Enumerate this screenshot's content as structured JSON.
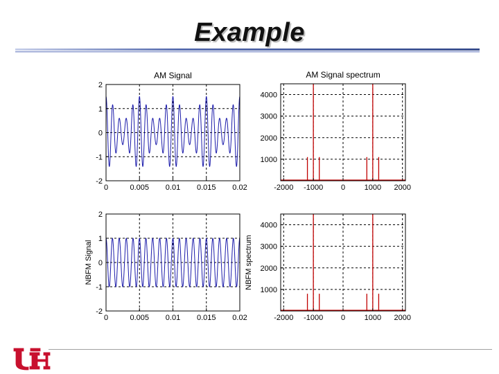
{
  "slide": {
    "title": "Example",
    "colors": {
      "title_rule_dark": "#3a4f8e",
      "title_rule_light": "#a9b6da",
      "logo_red": "#c8102e"
    },
    "logo_icon": "uh-logo-icon"
  },
  "chart_data": [
    {
      "type": "line",
      "title": "AM Signal",
      "xlabel": "",
      "ylabel": "",
      "xlim": [
        0,
        0.02
      ],
      "ylim": [
        -2,
        2
      ],
      "xticks": [
        "0",
        "0.005",
        "0.01",
        "0.015",
        "0.02"
      ],
      "yticks": [
        "-2",
        "-1",
        "0",
        "1",
        "2"
      ],
      "grid": true,
      "color": "#1a1aaa",
      "series": [
        {
          "function": "am",
          "carrier_hz": 1000,
          "modulation_hz": 200,
          "modulation_index": 0.5
        }
      ]
    },
    {
      "type": "bar",
      "title": "AM Signal spectrum",
      "xlabel": "",
      "ylabel": "",
      "xlim": [
        -2100,
        2100
      ],
      "ylim": [
        0,
        4500
      ],
      "xticks": [
        "-2000",
        "-1000",
        "0",
        "1000",
        "2000"
      ],
      "yticks": [
        "1000",
        "2000",
        "3000",
        "4000"
      ],
      "grid": true,
      "color": "#c00000",
      "series": [
        {
          "x": [
            -1200,
            -1000,
            -800,
            800,
            1000,
            1200
          ],
          "y": [
            1100,
            4500,
            1100,
            1100,
            4500,
            1100
          ]
        }
      ]
    },
    {
      "type": "line",
      "title": "",
      "xlabel": "",
      "ylabel": "NBFM Signal",
      "xlim": [
        0,
        0.02
      ],
      "ylim": [
        -2,
        2
      ],
      "xticks": [
        "0",
        "0.005",
        "0.01",
        "0.015",
        "0.02"
      ],
      "yticks": [
        "-2",
        "-1",
        "0",
        "1",
        "2"
      ],
      "grid": true,
      "color": "#1a1aaa",
      "series": [
        {
          "function": "nbfm",
          "carrier_hz": 1000,
          "modulation_hz": 200,
          "amplitude": 1.0
        }
      ]
    },
    {
      "type": "bar",
      "title": "",
      "xlabel": "",
      "ylabel": "NBFM spectrum",
      "xlim": [
        -2100,
        2100
      ],
      "ylim": [
        0,
        4500
      ],
      "xticks": [
        "-2000",
        "-1000",
        "0",
        "1000",
        "2000"
      ],
      "yticks": [
        "1000",
        "2000",
        "3000",
        "4000"
      ],
      "grid": true,
      "color": "#c00000",
      "series": [
        {
          "x": [
            -1200,
            -1000,
            -800,
            800,
            1000,
            1200
          ],
          "y": [
            800,
            4500,
            800,
            800,
            4500,
            800
          ]
        }
      ]
    }
  ]
}
